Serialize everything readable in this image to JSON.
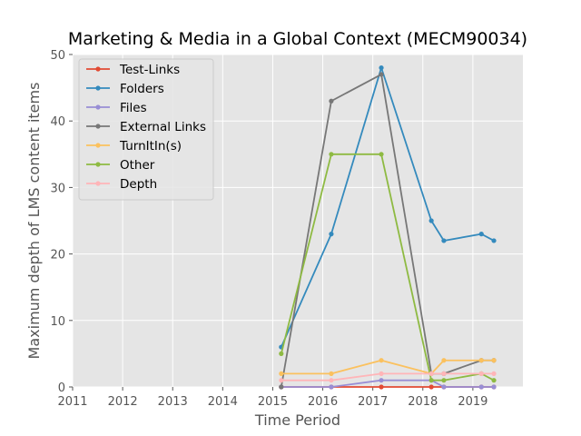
{
  "chart_data": {
    "type": "line",
    "title": "Marketing & Media in a Global Context (MECM90034)",
    "xlabel": "Time Period",
    "ylabel": "Maximum depth of LMS content items",
    "xlim": [
      2011,
      2020
    ],
    "ylim": [
      0,
      50
    ],
    "x_ticks": [
      "2011",
      "2012",
      "2013",
      "2014",
      "2015",
      "2016",
      "2017",
      "2018",
      "2019"
    ],
    "y_ticks": [
      "0",
      "10",
      "20",
      "30",
      "40",
      "50"
    ],
    "grid": true,
    "legend_position": "upper-left",
    "background": "#e5e5e5",
    "x": [
      2015.17,
      2016.17,
      2017.17,
      2018.17,
      2018.42,
      2019.17,
      2019.42
    ],
    "series": [
      {
        "name": "Test-Links",
        "color": "#e24a33",
        "values": [
          0,
          0,
          0,
          0,
          0,
          0,
          0
        ]
      },
      {
        "name": "Folders",
        "color": "#348abd",
        "values": [
          6,
          23,
          48,
          25,
          22,
          23,
          22
        ]
      },
      {
        "name": "Files",
        "color": "#988ed5",
        "values": [
          0,
          0,
          1,
          1,
          0,
          0,
          0
        ]
      },
      {
        "name": "External Links",
        "color": "#777777",
        "values": [
          0,
          43,
          47,
          2,
          2,
          4,
          4
        ]
      },
      {
        "name": "TurnItIn(s)",
        "color": "#fbc15e",
        "values": [
          2,
          2,
          4,
          2,
          4,
          4,
          4
        ]
      },
      {
        "name": "Other",
        "color": "#8eba42",
        "values": [
          5,
          35,
          35,
          1,
          1,
          2,
          1
        ]
      },
      {
        "name": "Depth",
        "color": "#ffb5b8",
        "values": [
          1,
          1,
          2,
          2,
          2,
          2,
          2
        ]
      }
    ]
  }
}
